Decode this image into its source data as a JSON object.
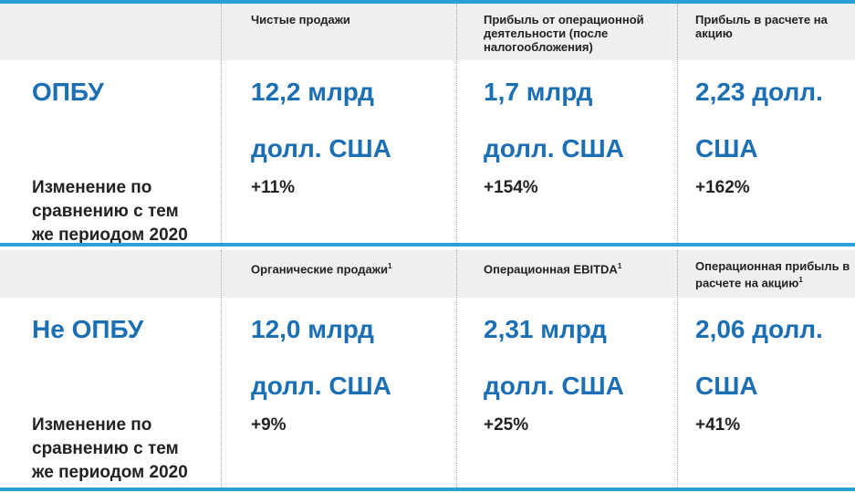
{
  "sections": [
    {
      "label": "ОПБУ",
      "change_label": [
        "Изменение по",
        "сравнению с тем",
        "же периодом 2020"
      ],
      "metrics": [
        {
          "header": "Чистые продажи",
          "value": [
            "12,2 млрд",
            "долл. США"
          ],
          "change": "+11%"
        },
        {
          "header": "Прибыль от операционной деятельности (после налогообложения)",
          "value": [
            "1,7 млрд",
            "долл. США"
          ],
          "change": "+154%"
        },
        {
          "header": "Прибыль в расчете на акцию",
          "value": [
            "2,23 долл.",
            "США"
          ],
          "change": "+162%"
        }
      ]
    },
    {
      "label": "Не ОПБУ",
      "change_label": [
        "Изменение по",
        "сравнению с тем",
        "же периодом 2020"
      ],
      "metrics": [
        {
          "header": "Органические продажи",
          "sup": "1",
          "value": [
            "12,0 млрд",
            "долл. США"
          ],
          "change": "+9%"
        },
        {
          "header": "Операционная EBITDA",
          "sup": "1",
          "value": [
            "2,31 млрд",
            "долл. США"
          ],
          "change": "+25%"
        },
        {
          "header": "Операционная прибыль в расчете на акцию",
          "sup": "1",
          "value": [
            "2,06 долл.",
            "США"
          ],
          "change": "+41%"
        }
      ]
    }
  ]
}
